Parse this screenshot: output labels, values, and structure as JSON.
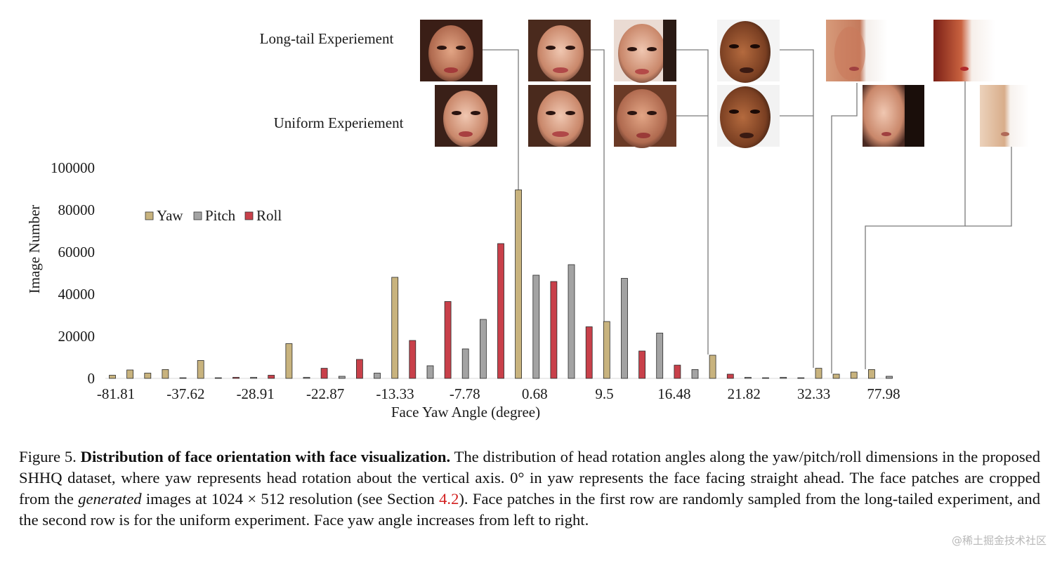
{
  "chart_data": {
    "type": "bar",
    "title": "",
    "xlabel": "Face Yaw Angle (degree)",
    "ylabel": "Image Number",
    "ylim": [
      0,
      100000
    ],
    "yticks": [
      0,
      20000,
      40000,
      60000,
      80000,
      100000
    ],
    "xtick_labels": [
      "-81.81",
      "-37.62",
      "-28.91",
      "-22.87",
      "-13.33",
      "-7.78",
      "0.68",
      "9.5",
      "16.48",
      "21.82",
      "32.33",
      "77.98"
    ],
    "legend": [
      "Yaw",
      "Pitch",
      "Roll"
    ],
    "legend_position": "top-left",
    "colors": {
      "Yaw": "#c8b37e",
      "Pitch": "#a3a3a3",
      "Roll": "#c8404a"
    },
    "bars": [
      {
        "series": "Yaw",
        "value": 1500
      },
      {
        "series": "Yaw",
        "value": 4000
      },
      {
        "series": "Yaw",
        "value": 2500
      },
      {
        "series": "Yaw",
        "value": 4200
      },
      {
        "series": "Pitch",
        "value": 300
      },
      {
        "series": "Yaw",
        "value": 8500
      },
      {
        "series": "Pitch",
        "value": 300
      },
      {
        "series": "Roll",
        "value": 500
      },
      {
        "series": "Pitch",
        "value": 500
      },
      {
        "series": "Roll",
        "value": 1500
      },
      {
        "series": "Yaw",
        "value": 16500
      },
      {
        "series": "Pitch",
        "value": 500
      },
      {
        "series": "Roll",
        "value": 4800
      },
      {
        "series": "Pitch",
        "value": 1000
      },
      {
        "series": "Roll",
        "value": 9000
      },
      {
        "series": "Pitch",
        "value": 2500
      },
      {
        "series": "Yaw",
        "value": 48000
      },
      {
        "series": "Roll",
        "value": 18000
      },
      {
        "series": "Pitch",
        "value": 6000
      },
      {
        "series": "Roll",
        "value": 36500
      },
      {
        "series": "Pitch",
        "value": 14000
      },
      {
        "series": "Pitch",
        "value": 28000
      },
      {
        "series": "Roll",
        "value": 64000
      },
      {
        "series": "Yaw",
        "value": 89500
      },
      {
        "series": "Pitch",
        "value": 49000
      },
      {
        "series": "Roll",
        "value": 46000
      },
      {
        "series": "Pitch",
        "value": 54000
      },
      {
        "series": "Roll",
        "value": 24500
      },
      {
        "series": "Yaw",
        "value": 27000
      },
      {
        "series": "Pitch",
        "value": 47500
      },
      {
        "series": "Roll",
        "value": 13000
      },
      {
        "series": "Pitch",
        "value": 21500
      },
      {
        "series": "Roll",
        "value": 6300
      },
      {
        "series": "Pitch",
        "value": 4200
      },
      {
        "series": "Yaw",
        "value": 11000
      },
      {
        "series": "Roll",
        "value": 2000
      },
      {
        "series": "Pitch",
        "value": 500
      },
      {
        "series": "Pitch",
        "value": 300
      },
      {
        "series": "Pitch",
        "value": 500
      },
      {
        "series": "Pitch",
        "value": 300
      },
      {
        "series": "Yaw",
        "value": 4800
      },
      {
        "series": "Yaw",
        "value": 2000
      },
      {
        "series": "Yaw",
        "value": 3000
      },
      {
        "series": "Yaw",
        "value": 4200
      },
      {
        "series": "Pitch",
        "value": 1000
      }
    ]
  },
  "annotations": {
    "row1_label": "Long-tail Experiement",
    "row2_label": "Uniform Experiement"
  },
  "face_patches": {
    "row1": [
      "face-01",
      "face-02",
      "face-03",
      "face-04",
      "face-05",
      "face-06"
    ],
    "row2": [
      "face-07",
      "face-08",
      "face-09",
      "face-10",
      "face-11",
      "face-12"
    ]
  },
  "caption": {
    "figure_label": "Figure 5.",
    "bold_title": "Distribution of face orientation with face visualization.",
    "text_1": " The distribution of head rotation angles along the yaw/pitch/roll dimensions in the proposed SHHQ dataset, where yaw represents head rotation about the vertical axis. 0° in yaw represents the face facing straight ahead. The face patches are cropped from the ",
    "italic_word": "generated",
    "text_2": " images at 1024 × 512 resolution (see Section ",
    "section_ref": "4.2",
    "text_3": "). Face patches in the first row are randomly sampled from the long-tailed experiment, and the second row is for the uniform experiment. Face yaw angle increases from left to right."
  },
  "watermark": "@稀土掘金技术社区"
}
